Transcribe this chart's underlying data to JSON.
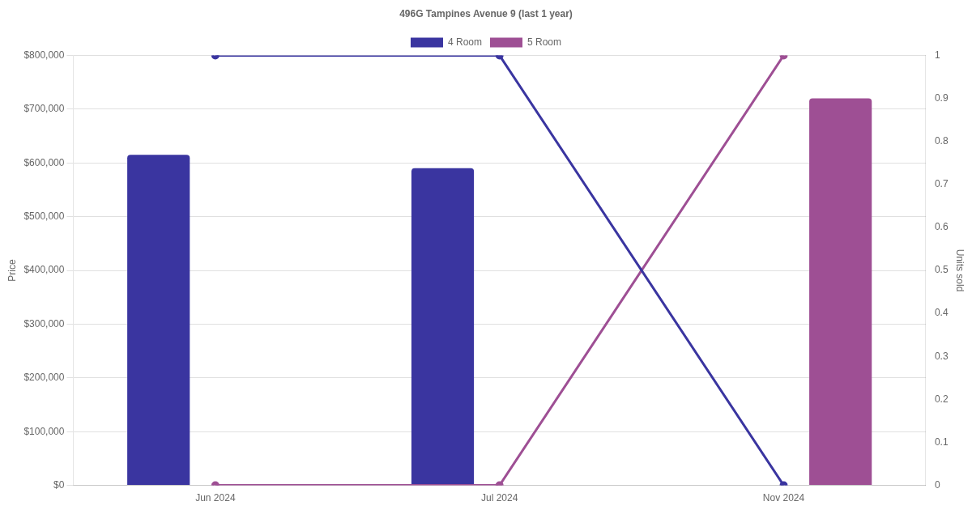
{
  "chart_data": {
    "type": "bar",
    "title": "496G Tampines Avenue 9 (last 1 year)",
    "ylabel": "Price",
    "y2label": "Units sold",
    "categories": [
      "Jun 2024",
      "Jul 2024",
      "Nov 2024"
    ],
    "series": [
      {
        "name": "4 Room",
        "color": "#3a35a0",
        "values": [
          615000,
          590000,
          null
        ]
      },
      {
        "name": "5 Room",
        "color": "#9e4f94",
        "values": [
          null,
          null,
          720000
        ]
      },
      {
        "type": "line",
        "axis": "y2",
        "color": "#3a35a0",
        "values": [
          1,
          1,
          0
        ]
      },
      {
        "type": "line",
        "axis": "y2",
        "color": "#9e4f94",
        "values": [
          0,
          0,
          1
        ]
      }
    ],
    "ylim": [
      0,
      800000
    ],
    "yticks": [
      {
        "value": 0,
        "label": "$0"
      },
      {
        "value": 100000,
        "label": "$100,000"
      },
      {
        "value": 200000,
        "label": "$200,000"
      },
      {
        "value": 300000,
        "label": "$300,000"
      },
      {
        "value": 400000,
        "label": "$400,000"
      },
      {
        "value": 500000,
        "label": "$500,000"
      },
      {
        "value": 600000,
        "label": "$600,000"
      },
      {
        "value": 700000,
        "label": "$700,000"
      },
      {
        "value": 800000,
        "label": "$800,000"
      }
    ],
    "y2lim": [
      0,
      1
    ],
    "y2ticks": [
      0,
      0.1,
      0.2,
      0.3,
      0.4,
      0.5,
      0.6,
      0.7,
      0.8,
      0.9,
      1
    ],
    "grid": "y",
    "legend": "top",
    "marker": "circle",
    "line_style": "solid"
  }
}
